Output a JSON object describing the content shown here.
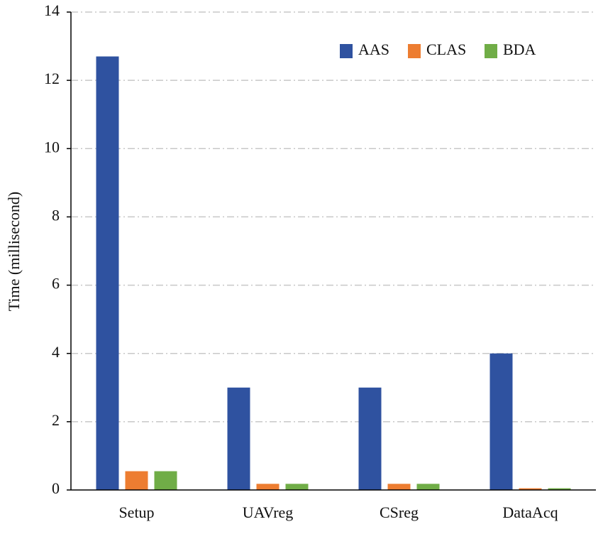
{
  "chart_data": {
    "type": "bar",
    "y_label": "Time (millisecond)",
    "categories": [
      "Setup",
      "UAVreg",
      "CSreg",
      "DataAcq"
    ],
    "series": [
      {
        "name": "AAS",
        "color": "#2f52a0",
        "values": [
          12.7,
          3.0,
          3.0,
          4.0
        ]
      },
      {
        "name": "CLAS",
        "color": "#ed7d31",
        "values": [
          0.55,
          0.18,
          0.18,
          0.05
        ]
      },
      {
        "name": "BDA",
        "color": "#70ad47",
        "values": [
          0.55,
          0.18,
          0.18,
          0.05
        ]
      }
    ],
    "ylim": [
      0,
      14
    ],
    "yticks": [
      0,
      2,
      4,
      6,
      8,
      10,
      12,
      14
    ],
    "grid": true,
    "legend": "upper right"
  }
}
